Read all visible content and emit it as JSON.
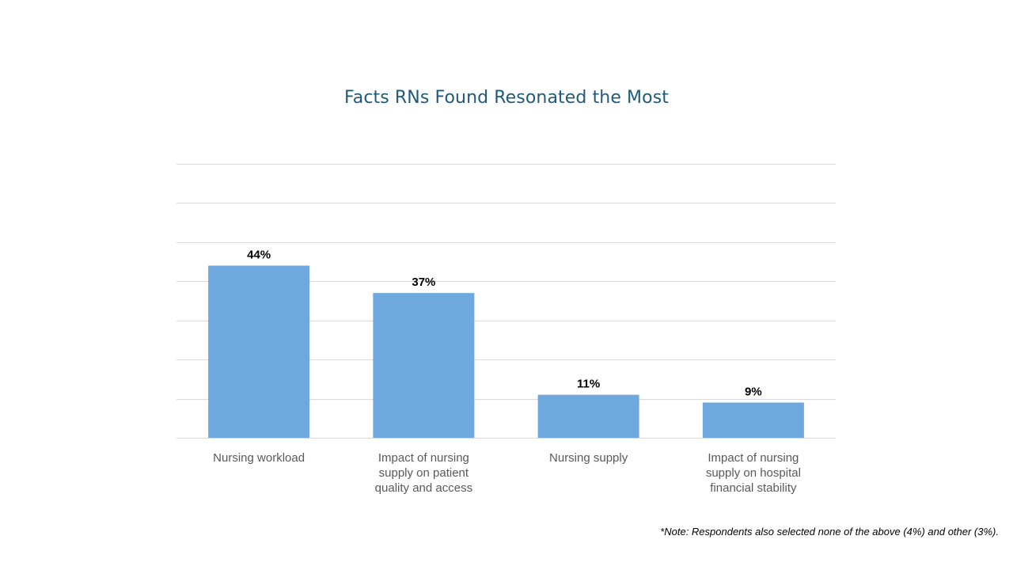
{
  "chart_data": {
    "type": "bar",
    "title": "Facts RNs Found Resonated the Most",
    "categories": [
      [
        "Nursing workload"
      ],
      [
        "Impact of nursing",
        "supply on patient",
        "quality and access"
      ],
      [
        "Nursing supply"
      ],
      [
        "Impact of nursing",
        "supply on hospital",
        "financial stability"
      ]
    ],
    "values": [
      44,
      37,
      11,
      9
    ],
    "value_labels": [
      "44%",
      "37%",
      "11%",
      "9%"
    ],
    "ylim": [
      0,
      70
    ],
    "gridline_step": 10,
    "grid": true,
    "y_axis_labels_shown": false,
    "bar_color": "#6fa8dc",
    "legend": "none",
    "footnote": "*Note: Respondents also selected none of the above (4%) and other (3%)."
  }
}
